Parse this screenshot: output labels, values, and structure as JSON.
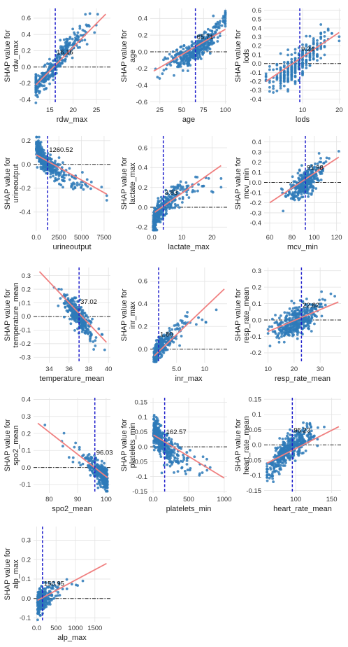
{
  "colors": {
    "points": "#2e7ab8",
    "fit_line": "#f08080",
    "threshold_line": "#1f1fcc",
    "zero_line": "#222222",
    "grid": "#e3e3e3"
  },
  "chart_data": [
    {
      "type": "scatter",
      "id": "rdw_max",
      "xlabel": "rdw_max",
      "ylabel": [
        "SHAP value for",
        "rdw_max"
      ],
      "xlim": [
        11.5,
        28
      ],
      "ylim": [
        -0.45,
        0.72
      ],
      "xticks": [
        15,
        20,
        25
      ],
      "yticks": [
        -0.4,
        -0.2,
        0.0,
        0.2,
        0.4,
        0.6
      ],
      "threshold": 16.16,
      "threshold_label": "16.16",
      "fit": [
        [
          12,
          -0.22
        ],
        [
          27,
          0.65
        ]
      ],
      "points": {
        "seed": 11,
        "n": 320,
        "x_mode": "normal",
        "x_center": 16,
        "x_spread": 3.2,
        "x_min": 12,
        "x_max": 27,
        "curve": [
          [
            12,
            -0.25
          ],
          [
            14,
            -0.12
          ],
          [
            16,
            0.0
          ],
          [
            18,
            0.18
          ],
          [
            20,
            0.3
          ],
          [
            23,
            0.42
          ],
          [
            27,
            0.6
          ]
        ],
        "noise": 0.07
      }
    },
    {
      "type": "scatter",
      "id": "age",
      "xlabel": "age",
      "ylabel": [
        "SHAP value for",
        "age"
      ],
      "xlim": [
        14,
        102
      ],
      "ylim": [
        -0.62,
        0.52
      ],
      "xticks": [
        25,
        50,
        75,
        100
      ],
      "yticks": [
        -0.6,
        -0.4,
        -0.2,
        0.0,
        0.2,
        0.4
      ],
      "threshold": 65.71,
      "threshold_label": "65.71",
      "fit": [
        [
          18,
          -0.23
        ],
        [
          100,
          0.27
        ]
      ],
      "points": {
        "seed": 23,
        "n": 380,
        "x_mode": "normal",
        "x_center": 66,
        "x_spread": 16,
        "x_min": 18,
        "x_max": 100,
        "curve": [
          [
            18,
            -0.18
          ],
          [
            40,
            -0.12
          ],
          [
            55,
            -0.06
          ],
          [
            66,
            0.0
          ],
          [
            80,
            0.12
          ],
          [
            90,
            0.25
          ],
          [
            100,
            0.42
          ]
        ],
        "noise": 0.07
      }
    },
    {
      "type": "scatter",
      "id": "lods",
      "xlabel": "lods",
      "ylabel": [
        "SHAP value for",
        "lods"
      ],
      "xlim": [
        -0.5,
        20.5
      ],
      "ylim": [
        -0.45,
        0.62
      ],
      "xticks": [
        10,
        20
      ],
      "yticks": [
        -0.4,
        -0.3,
        -0.2,
        -0.1,
        0.0,
        0.1,
        0.2,
        0.3,
        0.4,
        0.5,
        0.6
      ],
      "threshold": 9.24,
      "threshold_label": "9.24",
      "fit": [
        [
          0,
          -0.2
        ],
        [
          20,
          0.35
        ]
      ],
      "points": {
        "seed": 37,
        "n": 330,
        "x_mode": "integer",
        "x_center": 9,
        "x_spread": 4,
        "x_min": 0,
        "x_max": 20,
        "curve": [
          [
            0,
            -0.2
          ],
          [
            5,
            -0.12
          ],
          [
            9,
            0.0
          ],
          [
            13,
            0.15
          ],
          [
            17,
            0.28
          ],
          [
            20,
            0.35
          ]
        ],
        "noise": 0.08
      }
    },
    {
      "type": "scatter",
      "id": "urineoutput",
      "xlabel": "urineoutput",
      "ylabel": [
        "SHAP value for",
        "urineoutput"
      ],
      "xlim": [
        -300,
        8200
      ],
      "ylim": [
        -0.56,
        0.24
      ],
      "xticks": [
        0,
        2500,
        5000,
        7500
      ],
      "yticks": [
        -0.4,
        -0.2,
        0.0,
        0.2
      ],
      "threshold": 1260.52,
      "threshold_label": "1260.52",
      "fit": [
        [
          0,
          0.08
        ],
        [
          7800,
          -0.25
        ]
      ],
      "points": {
        "seed": 41,
        "n": 360,
        "x_mode": "skewed",
        "x_center": 1500,
        "x_spread": 1500,
        "x_min": 0,
        "x_max": 7800,
        "curve": [
          [
            0,
            0.16
          ],
          [
            800,
            0.04
          ],
          [
            1260,
            0.0
          ],
          [
            2500,
            -0.07
          ],
          [
            4000,
            -0.13
          ],
          [
            6000,
            -0.2
          ],
          [
            7800,
            -0.27
          ]
        ],
        "noise": 0.05
      }
    },
    {
      "type": "scatter",
      "id": "lactate_max",
      "xlabel": "lactate_max",
      "ylabel": [
        "SHAP value for",
        "lactate_max"
      ],
      "xlim": [
        -0.5,
        25
      ],
      "ylim": [
        -0.24,
        0.72
      ],
      "xticks": [
        0,
        10,
        20
      ],
      "yticks": [
        -0.2,
        0.0,
        0.2,
        0.4,
        0.6
      ],
      "threshold": 3.83,
      "threshold_label": "3.83",
      "fit": [
        [
          1,
          -0.05
        ],
        [
          23,
          0.42
        ]
      ],
      "points": {
        "seed": 53,
        "n": 320,
        "x_mode": "skewed",
        "x_center": 3,
        "x_spread": 4,
        "x_min": 0.5,
        "x_max": 23,
        "curve": [
          [
            0.5,
            -0.17
          ],
          [
            2,
            -0.06
          ],
          [
            3.8,
            0.02
          ],
          [
            7,
            0.1
          ],
          [
            12,
            0.16
          ],
          [
            18,
            0.23
          ],
          [
            23,
            0.27
          ]
        ],
        "noise": 0.06
      }
    },
    {
      "type": "scatter",
      "id": "mcv_min",
      "xlabel": "mcv_min",
      "ylabel": [
        "SHAP value for",
        "mcv_min"
      ],
      "xlim": [
        55,
        124
      ],
      "ylim": [
        -0.48,
        0.46
      ],
      "xticks": [
        60,
        80,
        100,
        120
      ],
      "yticks": [
        -0.4,
        -0.3,
        -0.2,
        -0.1,
        0.0,
        0.1,
        0.2,
        0.3,
        0.4
      ],
      "threshold": 91.98,
      "threshold_label": "91.98",
      "fit": [
        [
          60,
          -0.2
        ],
        [
          122,
          0.25
        ]
      ],
      "points": {
        "seed": 67,
        "n": 330,
        "x_mode": "normal",
        "x_center": 92,
        "x_spread": 8,
        "x_min": 60,
        "x_max": 122,
        "curve": [
          [
            60,
            -0.22
          ],
          [
            75,
            -0.12
          ],
          [
            85,
            -0.05
          ],
          [
            92,
            0.0
          ],
          [
            100,
            0.07
          ],
          [
            110,
            0.18
          ],
          [
            122,
            0.32
          ]
        ],
        "noise": 0.06
      }
    },
    {
      "type": "scatter",
      "id": "temperature_mean",
      "xlabel": "temperature_mean",
      "ylabel": [
        "SHAP value for",
        "temperature_mean"
      ],
      "xlim": [
        32.4,
        40.2
      ],
      "ylim": [
        -0.34,
        0.36
      ],
      "xticks": [
        34,
        36,
        38,
        40
      ],
      "yticks": [
        -0.3,
        -0.2,
        -0.1,
        0.0,
        0.1,
        0.2,
        0.3
      ],
      "threshold": 37.02,
      "threshold_label": "37.02",
      "fit": [
        [
          33,
          0.33
        ],
        [
          39.8,
          -0.19
        ]
      ],
      "points": {
        "seed": 71,
        "n": 300,
        "x_mode": "normal",
        "x_center": 36.9,
        "x_spread": 0.8,
        "x_min": 33.2,
        "x_max": 39.8,
        "curve": [
          [
            33.2,
            0.3
          ],
          [
            35,
            0.18
          ],
          [
            36,
            0.08
          ],
          [
            37,
            0.0
          ],
          [
            38,
            -0.08
          ],
          [
            39,
            -0.14
          ],
          [
            39.8,
            -0.2
          ]
        ],
        "noise": 0.045
      }
    },
    {
      "type": "scatter",
      "id": "inr_max",
      "xlabel": "inr_max",
      "ylabel": [
        "SHAP value for",
        "inr_max"
      ],
      "xlim": [
        0.3,
        14
      ],
      "ylim": [
        -0.12,
        0.72
      ],
      "xticks": [
        5,
        10
      ],
      "yticks": [
        0.0,
        0.2,
        0.4,
        0.6
      ],
      "threshold": 1.8,
      "threshold_label": "1.80",
      "fit": [
        [
          1,
          -0.06
        ],
        [
          13.5,
          0.53
        ]
      ],
      "points": {
        "seed": 83,
        "n": 260,
        "x_mode": "skewed",
        "x_center": 1.5,
        "x_spread": 2,
        "x_min": 0.9,
        "x_max": 13.5,
        "curve": [
          [
            0.9,
            -0.07
          ],
          [
            1.8,
            0.0
          ],
          [
            3,
            0.08
          ],
          [
            5,
            0.16
          ],
          [
            8,
            0.24
          ],
          [
            11,
            0.3
          ],
          [
            13.5,
            0.35
          ]
        ],
        "noise": 0.05
      }
    },
    {
      "type": "scatter",
      "id": "resp_rate_mean",
      "xlabel": "resp_rate_mean",
      "ylabel": [
        "SHAP value for",
        "resp_rate_mean"
      ],
      "xlim": [
        8.5,
        38
      ],
      "ylim": [
        -0.26,
        0.32
      ],
      "xticks": [
        10,
        20,
        30
      ],
      "yticks": [
        -0.2,
        -0.1,
        0.0,
        0.1,
        0.2,
        0.3
      ],
      "threshold": 22.82,
      "threshold_label": "22.82",
      "fit": [
        [
          10,
          -0.07
        ],
        [
          37,
          0.11
        ]
      ],
      "points": {
        "seed": 97,
        "n": 360,
        "x_mode": "normal",
        "x_center": 21,
        "x_spread": 4.5,
        "x_min": 10,
        "x_max": 37,
        "curve": [
          [
            10,
            -0.06
          ],
          [
            16,
            -0.04
          ],
          [
            20,
            -0.02
          ],
          [
            22.8,
            0.0
          ],
          [
            27,
            0.04
          ],
          [
            32,
            0.08
          ],
          [
            37,
            0.13
          ]
        ],
        "noise": 0.045
      }
    },
    {
      "type": "scatter",
      "id": "spo2_mean",
      "xlabel": "spo2_mean",
      "ylabel": [
        "SHAP value for",
        "spo2_mean"
      ],
      "xlim": [
        74.5,
        101.5
      ],
      "ylim": [
        -0.15,
        0.41
      ],
      "xticks": [
        80,
        90,
        100
      ],
      "yticks": [
        -0.1,
        0.0,
        0.1,
        0.2,
        0.3,
        0.4
      ],
      "threshold": 96.03,
      "threshold_label": "96.03",
      "fit": [
        [
          76,
          0.26
        ],
        [
          100.5,
          -0.06
        ]
      ],
      "points": {
        "seed": 101,
        "n": 320,
        "x_mode": "leftskew",
        "x_center": 96,
        "x_spread": 3,
        "x_min": 76,
        "x_max": 100.5,
        "curve": [
          [
            76,
            0.25
          ],
          [
            85,
            0.15
          ],
          [
            90,
            0.09
          ],
          [
            94,
            0.03
          ],
          [
            96,
            0.0
          ],
          [
            98,
            -0.03
          ],
          [
            100.5,
            -0.08
          ]
        ],
        "noise": 0.035
      }
    },
    {
      "type": "scatter",
      "id": "platelets_min",
      "xlabel": "platelets_min",
      "ylabel": [
        "SHAP value for",
        "platelets_min"
      ],
      "xlim": [
        -40,
        1040
      ],
      "ylim": [
        -0.155,
        0.165
      ],
      "xticks": [
        0,
        500,
        1000
      ],
      "yticks": [
        -0.15,
        -0.1,
        -0.05,
        0.0,
        0.05,
        0.1,
        0.15
      ],
      "threshold": 162.57,
      "threshold_label": "162.57",
      "fit": [
        [
          5,
          0.04
        ],
        [
          1000,
          -0.105
        ]
      ],
      "points": {
        "seed": 113,
        "n": 380,
        "x_mode": "skewed",
        "x_center": 180,
        "x_spread": 150,
        "x_min": 5,
        "x_max": 1000,
        "curve": [
          [
            5,
            0.06
          ],
          [
            100,
            0.02
          ],
          [
            162,
            0.0
          ],
          [
            300,
            -0.03
          ],
          [
            500,
            -0.05
          ],
          [
            750,
            -0.07
          ],
          [
            1000,
            -0.09
          ]
        ],
        "noise": 0.025
      }
    },
    {
      "type": "scatter",
      "id": "heart_rate_mean",
      "xlabel": "heart_rate_mean",
      "ylabel": [
        "SHAP value for",
        "heart_rate_mean"
      ],
      "xlim": [
        56,
        163
      ],
      "ylim": [
        -0.158,
        0.155
      ],
      "xticks": [
        100,
        150
      ],
      "yticks": [
        -0.15,
        -0.1,
        -0.05,
        0.0,
        0.05,
        0.1,
        0.15
      ],
      "threshold": 95.23,
      "threshold_label": "95.23",
      "fit": [
        [
          60,
          -0.06
        ],
        [
          160,
          0.06
        ]
      ],
      "points": {
        "seed": 127,
        "n": 420,
        "x_mode": "normal",
        "x_center": 92,
        "x_spread": 16,
        "x_min": 60,
        "x_max": 160,
        "curve": [
          [
            60,
            -0.09
          ],
          [
            75,
            -0.05
          ],
          [
            85,
            -0.02
          ],
          [
            95,
            0.0
          ],
          [
            110,
            0.025
          ],
          [
            130,
            0.045
          ],
          [
            160,
            0.06
          ]
        ],
        "noise": 0.022
      }
    },
    {
      "type": "scatter",
      "id": "alp_max",
      "xlabel": "alp_max",
      "ylabel": [
        "SHAP value for",
        "alp_max"
      ],
      "xlim": [
        -80,
        1900
      ],
      "ylim": [
        -0.12,
        0.37
      ],
      "xticks": [
        0,
        500,
        1000,
        1500
      ],
      "yticks": [
        -0.1,
        0.0,
        0.1,
        0.2,
        0.3
      ],
      "threshold": 150.95,
      "threshold_label": "150.95",
      "fit": [
        [
          20,
          -0.01
        ],
        [
          1800,
          0.18
        ]
      ],
      "points": {
        "seed": 139,
        "n": 300,
        "x_mode": "skewed",
        "x_center": 120,
        "x_spread": 150,
        "x_min": 20,
        "x_max": 1800,
        "curve": [
          [
            20,
            -0.03
          ],
          [
            100,
            -0.005
          ],
          [
            150,
            0.0
          ],
          [
            300,
            0.02
          ],
          [
            600,
            0.05
          ],
          [
            1000,
            0.08
          ],
          [
            1800,
            0.12
          ]
        ],
        "noise": 0.03
      }
    }
  ]
}
